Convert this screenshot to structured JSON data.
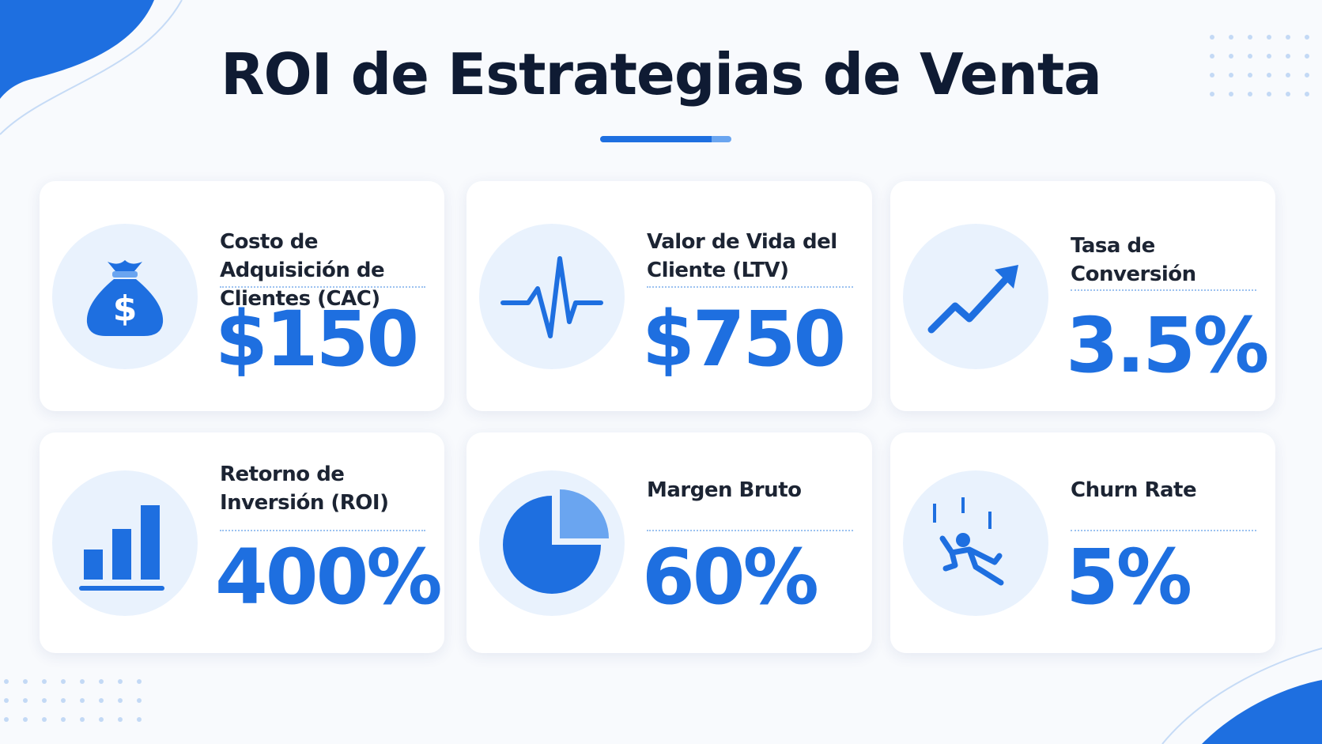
{
  "title": "ROI de Estrategias de Venta",
  "cards": [
    {
      "label": "Costo de Adquisición de Clientes (CAC)",
      "value": "$150"
    },
    {
      "label": "Valor de Vida del Cliente (LTV)",
      "value": "$750"
    },
    {
      "label": "Tasa de Conversión",
      "value": "3.5%"
    },
    {
      "label": "Retorno de Inversión (ROI)",
      "value": "400%"
    },
    {
      "label": "Margen Bruto",
      "value": "60%"
    },
    {
      "label": "Churn Rate",
      "value": "5%"
    }
  ]
}
